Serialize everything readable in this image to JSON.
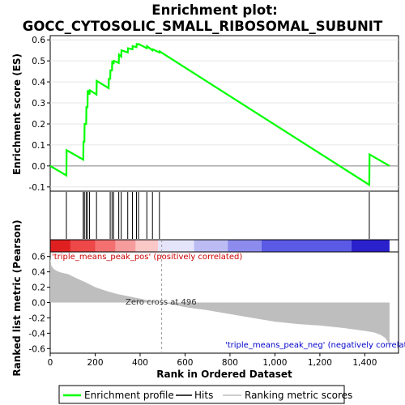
{
  "title_line1": "Enrichment plot:",
  "title_line2": "GOCC_CYTOSOLIC_SMALL_RIBOSOMAL_SUBUNIT",
  "colors": {
    "es_line": "#00ff00",
    "hits": "#000000",
    "metric_fill": "#bebebe",
    "pos_label": "#cc0000",
    "neg_label": "#0000cc",
    "zero_label": "#333333"
  },
  "chart_data": [
    {
      "type": "line",
      "name": "enrichment-profile",
      "ylabel": "Enrichment score (ES)",
      "xlim": [
        0,
        1550
      ],
      "ylim": [
        -0.12,
        0.62
      ],
      "yticks": [
        -0.1,
        0.0,
        0.1,
        0.2,
        0.3,
        0.4,
        0.5,
        0.6
      ],
      "ytick_labels": [
        "-0.1",
        "0.0",
        "0.1",
        "0.2",
        "0.3",
        "0.4",
        "0.5",
        "0.6"
      ],
      "grid": true,
      "x": [
        0,
        72,
        73,
        147,
        148,
        152,
        153,
        160,
        161,
        166,
        167,
        175,
        176,
        206,
        207,
        260,
        261,
        267,
        268,
        275,
        276,
        282,
        283,
        305,
        306,
        316,
        317,
        345,
        346,
        366,
        367,
        384,
        385,
        393,
        394,
        430,
        431,
        455,
        456,
        486,
        487,
        1420,
        1421,
        1510
      ],
      "y": [
        0.0,
        -0.045,
        0.075,
        0.03,
        0.115,
        0.115,
        0.2,
        0.2,
        0.28,
        0.28,
        0.36,
        0.34,
        0.36,
        0.34,
        0.405,
        0.37,
        0.415,
        0.415,
        0.455,
        0.455,
        0.5,
        0.485,
        0.5,
        0.49,
        0.53,
        0.52,
        0.55,
        0.54,
        0.56,
        0.555,
        0.57,
        0.565,
        0.58,
        0.578,
        0.58,
        0.56,
        0.57,
        0.55,
        0.555,
        0.54,
        0.545,
        -0.09,
        0.055,
        0.0
      ]
    },
    {
      "type": "hits",
      "name": "hits",
      "x": [
        72,
        147,
        152,
        160,
        166,
        175,
        206,
        267,
        275,
        282,
        305,
        316,
        345,
        366,
        384,
        393,
        430,
        455,
        486,
        1420
      ]
    },
    {
      "type": "area",
      "name": "ranking-metric",
      "ylabel": "Ranked list metric (Pearson)",
      "xlabel": "Rank in Ordered Dataset",
      "xlim": [
        0,
        1550
      ],
      "ylim": [
        -0.66,
        0.66
      ],
      "xticks": [
        0,
        200,
        400,
        600,
        800,
        1000,
        1200,
        1400
      ],
      "xtick_labels": [
        "0",
        "200",
        "400",
        "600",
        "800",
        "1,000",
        "1,200",
        "1,400"
      ],
      "yticks": [
        -0.6,
        -0.4,
        -0.2,
        0.0,
        0.2,
        0.4,
        0.6
      ],
      "ytick_labels": [
        "-0.6",
        "-0.4",
        "-0.2",
        "0.0",
        "0.2",
        "0.4",
        "0.6"
      ],
      "x": [
        0,
        5,
        15,
        30,
        50,
        80,
        100,
        130,
        160,
        200,
        250,
        300,
        350,
        400,
        450,
        496,
        550,
        600,
        650,
        700,
        800,
        900,
        1000,
        1100,
        1200,
        1300,
        1350,
        1400,
        1440,
        1470,
        1490,
        1505,
        1510
      ],
      "y": [
        0.58,
        0.48,
        0.44,
        0.41,
        0.39,
        0.37,
        0.34,
        0.3,
        0.26,
        0.2,
        0.15,
        0.11,
        0.08,
        0.05,
        0.02,
        0.0,
        -0.03,
        -0.06,
        -0.08,
        -0.1,
        -0.15,
        -0.2,
        -0.25,
        -0.28,
        -0.3,
        -0.33,
        -0.35,
        -0.37,
        -0.39,
        -0.42,
        -0.46,
        -0.52,
        -0.62
      ]
    }
  ],
  "heatbar": {
    "segments": [
      {
        "x0": 0,
        "x1": 90,
        "color": "#e02020"
      },
      {
        "x0": 90,
        "x1": 200,
        "color": "#ee4848"
      },
      {
        "x0": 200,
        "x1": 290,
        "color": "#f47070"
      },
      {
        "x0": 290,
        "x1": 380,
        "color": "#f79c9c"
      },
      {
        "x0": 380,
        "x1": 480,
        "color": "#fbc8c8"
      },
      {
        "x0": 480,
        "x1": 640,
        "color": "#e4e4fa"
      },
      {
        "x0": 640,
        "x1": 790,
        "color": "#bcbcf4"
      },
      {
        "x0": 790,
        "x1": 940,
        "color": "#8c8cee"
      },
      {
        "x0": 940,
        "x1": 1340,
        "color": "#5a5ae6"
      },
      {
        "x0": 1340,
        "x1": 1510,
        "color": "#2a20cc"
      }
    ]
  },
  "annotations": {
    "pos_label": "'triple_means_peak_pos' (positively correlated)",
    "neg_label": "'triple_means_peak_neg' (negatively correlated)",
    "zero_cross": "Zero cross at 496"
  },
  "legend": {
    "placement": "bottom",
    "items": [
      {
        "label": "Enrichment profile",
        "color": "#00ff00"
      },
      {
        "label": "Hits",
        "color": "#000000"
      },
      {
        "label": "Ranking metric scores",
        "color": "#bebebe"
      }
    ]
  }
}
